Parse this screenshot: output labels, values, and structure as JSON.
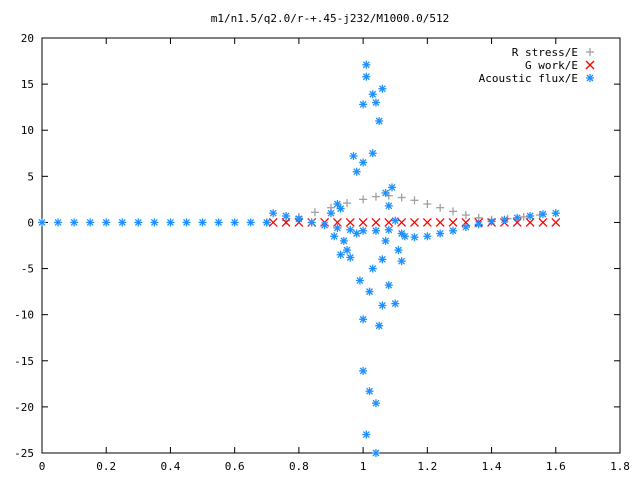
{
  "chart_data": {
    "type": "scatter",
    "title": "m1/n1.5/q2.0/r-+.45-j232/M1000.0/512",
    "xlabel": "",
    "ylabel": "",
    "xlim": [
      0,
      1.8
    ],
    "ylim": [
      -25,
      20
    ],
    "xticks": [
      "0",
      "0.2",
      "0.4",
      "0.6",
      "0.8",
      "1",
      "1.2",
      "1.4",
      "1.6",
      "1.8"
    ],
    "yticks": [
      "20",
      "15",
      "10",
      "5",
      "0",
      "-5",
      "-10",
      "-15",
      "-20",
      "-25"
    ],
    "grid": false,
    "legend_position": "top-right",
    "series": [
      {
        "name": "R stress/E",
        "marker": "+",
        "color": "#a0a0a0",
        "points": [
          [
            0.7,
            0.0
          ],
          [
            0.76,
            0.2
          ],
          [
            0.8,
            0.6
          ],
          [
            0.85,
            1.1
          ],
          [
            0.9,
            1.6
          ],
          [
            0.95,
            2.1
          ],
          [
            1.0,
            2.5
          ],
          [
            1.04,
            2.8
          ],
          [
            1.08,
            2.9
          ],
          [
            1.12,
            2.7
          ],
          [
            1.16,
            2.4
          ],
          [
            1.2,
            2.0
          ],
          [
            1.24,
            1.6
          ],
          [
            1.28,
            1.2
          ],
          [
            1.32,
            0.8
          ],
          [
            1.36,
            0.5
          ],
          [
            1.4,
            0.3
          ],
          [
            1.45,
            0.4
          ],
          [
            1.5,
            0.6
          ],
          [
            1.55,
            0.8
          ],
          [
            1.6,
            1.0
          ]
        ]
      },
      {
        "name": "G work/E",
        "marker": "x",
        "color": "#ff0000",
        "points": [
          [
            0.72,
            0.0
          ],
          [
            0.76,
            0.0
          ],
          [
            0.8,
            0.0
          ],
          [
            0.84,
            0.0
          ],
          [
            0.88,
            0.0
          ],
          [
            0.92,
            0.0
          ],
          [
            0.96,
            0.0
          ],
          [
            1.0,
            0.0
          ],
          [
            1.04,
            0.0
          ],
          [
            1.08,
            0.0
          ],
          [
            1.12,
            0.0
          ],
          [
            1.16,
            0.0
          ],
          [
            1.2,
            0.0
          ],
          [
            1.24,
            0.0
          ],
          [
            1.28,
            0.0
          ],
          [
            1.32,
            0.0
          ],
          [
            1.36,
            0.0
          ],
          [
            1.4,
            0.0
          ],
          [
            1.44,
            0.0
          ],
          [
            1.48,
            0.0
          ],
          [
            1.52,
            0.0
          ],
          [
            1.56,
            0.0
          ],
          [
            1.6,
            0.0
          ]
        ]
      },
      {
        "name": "Acoustic flux/E",
        "marker": "*",
        "color": "#1e90ff",
        "points": [
          [
            0.0,
            0.0
          ],
          [
            0.05,
            0.0
          ],
          [
            0.1,
            0.0
          ],
          [
            0.15,
            0.0
          ],
          [
            0.2,
            0.0
          ],
          [
            0.25,
            0.0
          ],
          [
            0.3,
            0.0
          ],
          [
            0.35,
            0.0
          ],
          [
            0.4,
            0.0
          ],
          [
            0.45,
            0.0
          ],
          [
            0.5,
            0.0
          ],
          [
            0.55,
            0.0
          ],
          [
            0.6,
            0.0
          ],
          [
            0.65,
            0.0
          ],
          [
            0.7,
            0.0
          ],
          [
            0.72,
            1.0
          ],
          [
            0.76,
            0.7
          ],
          [
            0.8,
            0.4
          ],
          [
            0.84,
            0.0
          ],
          [
            0.88,
            -0.3
          ],
          [
            0.92,
            -0.6
          ],
          [
            0.96,
            -0.8
          ],
          [
            1.0,
            -0.9
          ],
          [
            1.04,
            -0.9
          ],
          [
            1.08,
            -0.8
          ],
          [
            1.12,
            -1.2
          ],
          [
            1.16,
            -1.6
          ],
          [
            1.2,
            -1.5
          ],
          [
            1.24,
            -1.2
          ],
          [
            1.28,
            -0.9
          ],
          [
            1.32,
            -0.5
          ],
          [
            1.36,
            -0.2
          ],
          [
            1.4,
            0.1
          ],
          [
            1.44,
            0.3
          ],
          [
            1.48,
            0.5
          ],
          [
            1.52,
            0.7
          ],
          [
            1.56,
            0.9
          ],
          [
            1.6,
            1.0
          ],
          [
            0.9,
            1.0
          ],
          [
            0.91,
            -1.5
          ],
          [
            0.92,
            2.0
          ],
          [
            0.93,
            1.5
          ],
          [
            0.93,
            -3.5
          ],
          [
            0.94,
            -2.0
          ],
          [
            0.95,
            -3.0
          ],
          [
            0.96,
            -3.8
          ],
          [
            0.97,
            7.2
          ],
          [
            0.98,
            5.5
          ],
          [
            0.98,
            -1.2
          ],
          [
            0.99,
            -6.3
          ],
          [
            1.0,
            12.8
          ],
          [
            1.0,
            6.5
          ],
          [
            1.0,
            -10.5
          ],
          [
            1.01,
            17.1
          ],
          [
            1.01,
            15.8
          ],
          [
            1.02,
            -7.5
          ],
          [
            1.03,
            13.9
          ],
          [
            1.03,
            7.5
          ],
          [
            1.04,
            -19.6
          ],
          [
            1.04,
            -25.0
          ],
          [
            1.05,
            11.0
          ],
          [
            1.05,
            -11.2
          ],
          [
            1.06,
            14.5
          ],
          [
            1.06,
            -9.0
          ],
          [
            1.07,
            3.2
          ],
          [
            1.08,
            1.8
          ],
          [
            1.08,
            -6.8
          ],
          [
            1.09,
            3.8
          ],
          [
            1.1,
            0.2
          ],
          [
            1.1,
            -8.8
          ],
          [
            1.11,
            -3.0
          ],
          [
            1.12,
            -4.2
          ],
          [
            1.13,
            -1.5
          ],
          [
            1.0,
            -16.1
          ],
          [
            1.02,
            -18.3
          ],
          [
            1.01,
            -23.0
          ],
          [
            1.04,
            13.0
          ],
          [
            1.03,
            -5.0
          ],
          [
            1.06,
            -4.0
          ],
          [
            1.07,
            -2.0
          ]
        ]
      }
    ]
  }
}
